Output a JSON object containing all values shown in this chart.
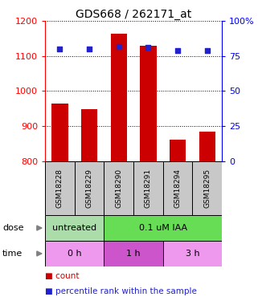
{
  "title": "GDS668 / 262171_at",
  "samples": [
    "GSM18228",
    "GSM18229",
    "GSM18290",
    "GSM18291",
    "GSM18294",
    "GSM18295"
  ],
  "bar_values": [
    965,
    948,
    1165,
    1130,
    862,
    883
  ],
  "percentile_values": [
    80,
    80,
    82,
    81,
    79,
    79
  ],
  "ymin": 800,
  "ymax": 1200,
  "y2min": 0,
  "y2max": 100,
  "yticks": [
    800,
    900,
    1000,
    1100,
    1200
  ],
  "y2ticks": [
    0,
    25,
    50,
    75,
    100
  ],
  "bar_color": "#cc0000",
  "dot_color": "#2222cc",
  "bar_width": 0.55,
  "sample_bg_color": "#c8c8c8",
  "dose_untreated_color": "#aaddaa",
  "dose_iaa_color": "#66dd55",
  "time_0h_color": "#ee99ee",
  "time_1h_color": "#cc55cc",
  "time_3h_color": "#ee99ee",
  "legend_count_color": "#cc0000",
  "legend_dot_color": "#2222cc"
}
